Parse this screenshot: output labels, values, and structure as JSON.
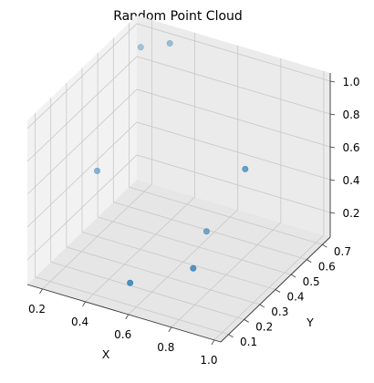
{
  "chart_data": {
    "type": "scatter",
    "projection": "3d",
    "title": "Random Point Cloud",
    "xlabel": "X",
    "ylabel": "Y",
    "zlabel": "",
    "xticks": [
      "0.2",
      "0.4",
      "0.6",
      "0.8",
      "1.0"
    ],
    "yticks": [
      "0.1",
      "0.2",
      "0.3",
      "0.4",
      "0.5",
      "0.6",
      "0.7"
    ],
    "zticks": [
      "0.2",
      "0.4",
      "0.6",
      "0.8",
      "1.0"
    ],
    "xlim": [
      0.13,
      1.03
    ],
    "ylim": [
      0.05,
      0.75
    ],
    "zlim": [
      0.05,
      1.05
    ],
    "grid": true,
    "marker_color": "#1f77b4",
    "points": [
      {
        "x": 0.55,
        "y": 0.13,
        "z": 0.15
      },
      {
        "x": 0.72,
        "y": 0.3,
        "z": 0.15
      },
      {
        "x": 0.6,
        "y": 0.55,
        "z": 0.1
      },
      {
        "x": 0.78,
        "y": 0.55,
        "z": 0.55
      },
      {
        "x": 0.2,
        "y": 0.4,
        "z": 0.45
      },
      {
        "x": 0.32,
        "y": 0.7,
        "z": 1.0
      },
      {
        "x": 0.17,
        "y": 0.72,
        "z": 0.9
      }
    ]
  }
}
